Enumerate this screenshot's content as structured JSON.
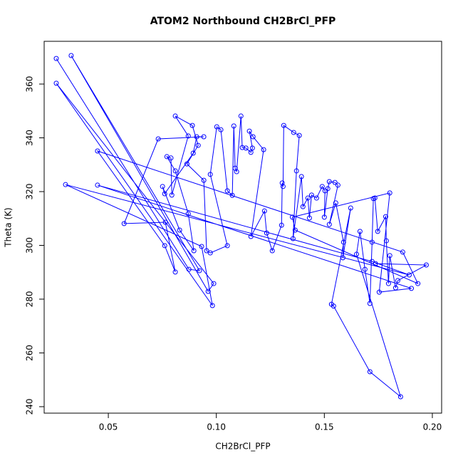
{
  "chart_data": {
    "type": "scatter",
    "lines": true,
    "title": "ATOM2 Northbound CH2BrCl_PFP",
    "x_label": "CH2BrCl_PFP",
    "y_label": "Theta (K)",
    "color": "#0000ff",
    "xlim": [
      0.0203,
      0.2043
    ],
    "ylim": [
      237.6,
      375.9
    ],
    "xticks": [
      0.05,
      {
        "value": 0.1,
        "label": "0.10"
      },
      0.15,
      {
        "value": 0.2,
        "label": "0.20"
      }
    ],
    "yticks": [
      240,
      260,
      280,
      300,
      320,
      340,
      360
    ],
    "x": [
      0.0259,
      0.0873,
      0.0922,
      0.0328,
      0.0962,
      0.0988,
      0.0259,
      0.0982,
      0.0932,
      0.0302,
      0.1893,
      0.1721,
      0.045,
      0.1903,
      0.1754,
      0.1803,
      0.1352,
      0.1365,
      0.1933,
      0.1863,
      0.045,
      0.0761,
      0.081,
      0.0764,
      0.0573,
      0.0731,
      0.0942,
      0.0909,
      0.0893,
      0.0761,
      0.0751,
      0.083,
      0.0896,
      0.087,
      0.081,
      0.0771,
      0.079,
      0.0794,
      0.087,
      0.081,
      0.0889,
      0.0916,
      0.0864,
      0.0942,
      0.0955,
      0.0972,
      0.1051,
      0.0972,
      0.1002,
      0.1021,
      0.1051,
      0.1074,
      0.1081,
      0.1087,
      0.1094,
      0.1114,
      0.112,
      0.1137,
      0.116,
      0.1167,
      0.1153,
      0.117,
      0.1219,
      0.116,
      0.1223,
      0.1233,
      0.1259,
      0.1302,
      0.1305,
      0.1309,
      0.1312,
      0.1358,
      0.1384,
      0.1371,
      0.1355,
      0.1394,
      0.1401,
      0.1424,
      0.1431,
      0.1441,
      0.1464,
      0.149,
      0.1503,
      0.15,
      0.1516,
      0.1523,
      0.1549,
      0.1563,
      0.1523,
      0.1553,
      0.1589,
      0.1586,
      0.1622,
      0.1533,
      0.1543,
      0.1711,
      0.1853,
      0.1649,
      0.1665,
      0.1688,
      0.1711,
      0.1721,
      0.1727,
      0.1734,
      0.1747,
      0.1784,
      0.1787,
      0.1797,
      0.1803,
      0.183,
      0.184,
      0.1972,
      0.1737
    ],
    "y": [
      369.5,
      291.1,
      290.6,
      370.6,
      282.9,
      285.8,
      360.3,
      277.6,
      299.6,
      322.6,
      289.0,
      294.0,
      322.4,
      284.0,
      282.6,
      319.5,
      310.5,
      305.7,
      285.8,
      297.5,
      335.1,
      299.9,
      290.1,
      308.6,
      308.1,
      339.6,
      340.4,
      340.4,
      334.3,
      319.2,
      321.9,
      305.7,
      298.0,
      311.8,
      327.7,
      333.0,
      332.5,
      318.7,
      340.7,
      348.1,
      344.6,
      337.2,
      330.3,
      324.2,
      298.0,
      297.2,
      299.9,
      326.4,
      344.1,
      343.0,
      320.3,
      318.6,
      344.4,
      328.7,
      327.4,
      348.1,
      336.4,
      336.2,
      334.6,
      336.2,
      342.5,
      340.4,
      335.6,
      303.3,
      312.8,
      304.6,
      298.0,
      307.5,
      323.2,
      321.9,
      344.6,
      342.0,
      340.9,
      327.7,
      302.5,
      325.6,
      314.4,
      317.6,
      310.2,
      318.7,
      317.6,
      321.9,
      320.3,
      310.5,
      321.1,
      323.7,
      323.4,
      322.4,
      307.8,
      315.8,
      301.2,
      295.4,
      313.9,
      278.1,
      277.4,
      253.0,
      243.7,
      296.7,
      305.2,
      291.1,
      278.4,
      301.2,
      317.4,
      317.6,
      305.2,
      310.7,
      301.7,
      285.8,
      296.2,
      284.2,
      286.9,
      292.7,
      293.2
    ]
  }
}
